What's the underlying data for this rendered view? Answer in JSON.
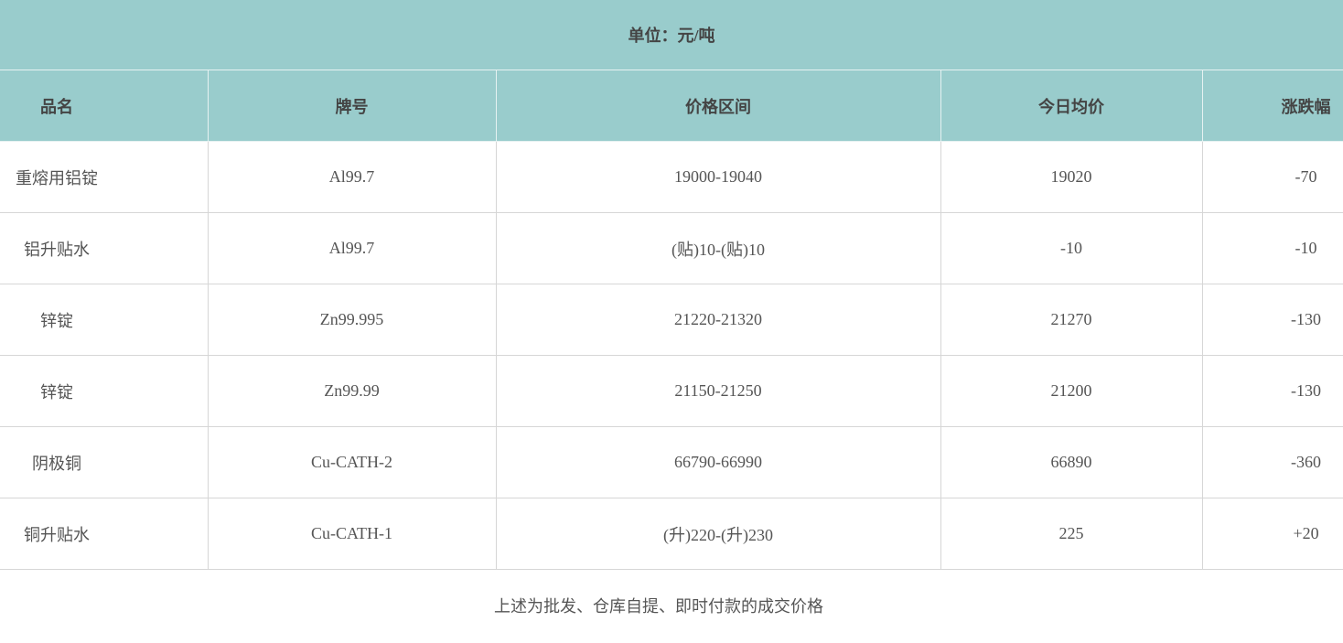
{
  "unit_label": "单位：元/吨",
  "columns": [
    "品名",
    "牌号",
    "价格区间",
    "今日均价",
    "涨跌幅"
  ],
  "rows": [
    [
      "重熔用铝锭",
      "Al99.7",
      "19000-19040",
      "19020",
      "-70"
    ],
    [
      "铝升贴水",
      "Al99.7",
      "(贴)10-(贴)10",
      "-10",
      "-10"
    ],
    [
      "锌锭",
      "Zn99.995",
      "21220-21320",
      "21270",
      "-130"
    ],
    [
      "锌锭",
      "Zn99.99",
      "21150-21250",
      "21200",
      "-130"
    ],
    [
      "阴极铜",
      "Cu-CATH-2",
      "66790-66990",
      "66890",
      "-360"
    ],
    [
      "铜升贴水",
      "Cu-CATH-1",
      "(升)220-(升)230",
      "225",
      "+20"
    ]
  ],
  "footnote": "上述为批发、仓库自提、即时付款的成交价格",
  "colors": {
    "header_bg": "#99cccc",
    "border": "#d6d6d6"
  }
}
